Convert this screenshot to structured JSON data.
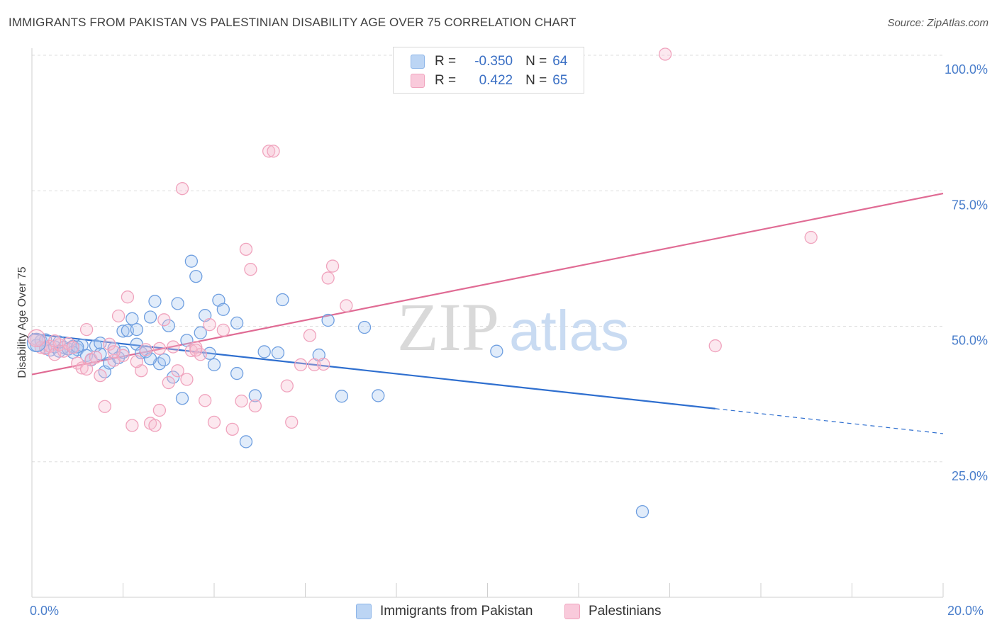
{
  "title": "IMMIGRANTS FROM PAKISTAN VS PALESTINIAN DISABILITY AGE OVER 75 CORRELATION CHART",
  "source": "Source: ZipAtlas.com",
  "watermark": {
    "zip": "ZIP",
    "atlas": "atlas"
  },
  "legend": {
    "r_label": "R =",
    "n_label": "N =",
    "series1": {
      "r": "-0.350",
      "n": "64",
      "color": "#a9c8f0"
    },
    "series2": {
      "r": "0.422",
      "n": "65",
      "color": "#f7bcd0"
    }
  },
  "bottom_legend": {
    "series1": "Immigrants from Pakistan",
    "series2": "Palestinians"
  },
  "chart_data": {
    "type": "scatter",
    "title": "IMMIGRANTS FROM PAKISTAN VS PALESTINIAN DISABILITY AGE OVER 75 CORRELATION CHART",
    "xlabel": "",
    "ylabel": "Disability Age Over 75",
    "xlim": [
      0.0,
      20.0
    ],
    "ylim": [
      0,
      103
    ],
    "x_tick_labels": [
      "0.0%",
      "20.0%"
    ],
    "y_ticks": [
      25,
      50,
      75,
      100
    ],
    "y_tick_labels": [
      "25.0%",
      "50.0%",
      "75.0%",
      "100.0%"
    ],
    "grid": true,
    "legend_position": "top-center",
    "series": [
      {
        "name": "Immigrants from Pakistan",
        "color": "#6f9fe0",
        "line_color": "#2f6fcf",
        "trend": {
          "x0": 0.0,
          "y0": 48.6,
          "x1": 15.0,
          "y1": 34.8,
          "x_dash_end": 20.0,
          "y_dash_end": 30.2
        },
        "points": [
          [
            0.1,
            46.5
          ],
          [
            0.2,
            47.3
          ],
          [
            0.3,
            46.0
          ],
          [
            0.4,
            45.6
          ],
          [
            0.5,
            46.2
          ],
          [
            0.6,
            45.4
          ],
          [
            0.7,
            46.1
          ],
          [
            0.8,
            45.8
          ],
          [
            0.9,
            46.3
          ],
          [
            1.0,
            45.7
          ],
          [
            1.1,
            46.5
          ],
          [
            1.2,
            44.6
          ],
          [
            1.3,
            43.8
          ],
          [
            1.4,
            46.4
          ],
          [
            1.5,
            44.9
          ],
          [
            1.6,
            41.6
          ],
          [
            1.7,
            43.2
          ],
          [
            1.8,
            45.9
          ],
          [
            1.9,
            44.2
          ],
          [
            2.0,
            49.1
          ],
          [
            2.1,
            49.2
          ],
          [
            2.2,
            51.4
          ],
          [
            2.3,
            46.7
          ],
          [
            2.4,
            45.1
          ],
          [
            2.5,
            45.3
          ],
          [
            2.6,
            51.7
          ],
          [
            2.7,
            54.6
          ],
          [
            2.8,
            43.1
          ],
          [
            2.9,
            43.8
          ],
          [
            3.0,
            50.1
          ],
          [
            3.1,
            40.6
          ],
          [
            3.2,
            54.2
          ],
          [
            3.3,
            36.7
          ],
          [
            3.4,
            47.4
          ],
          [
            3.5,
            62.0
          ],
          [
            3.6,
            59.2
          ],
          [
            3.7,
            48.8
          ],
          [
            3.8,
            52.0
          ],
          [
            3.9,
            45.0
          ],
          [
            4.0,
            42.9
          ],
          [
            4.1,
            54.8
          ],
          [
            4.2,
            53.1
          ],
          [
            4.5,
            50.6
          ],
          [
            4.5,
            41.3
          ],
          [
            4.7,
            28.7
          ],
          [
            4.9,
            37.2
          ],
          [
            5.1,
            45.3
          ],
          [
            5.4,
            45.1
          ],
          [
            5.5,
            54.9
          ],
          [
            6.3,
            44.7
          ],
          [
            6.5,
            51.1
          ],
          [
            6.8,
            37.1
          ],
          [
            7.3,
            49.8
          ],
          [
            7.6,
            37.2
          ],
          [
            10.2,
            45.4
          ],
          [
            13.4,
            15.8
          ],
          [
            2.3,
            49.4
          ],
          [
            0.3,
            47.5
          ],
          [
            0.6,
            47.1
          ],
          [
            0.9,
            45.2
          ],
          [
            1.0,
            46.2
          ],
          [
            1.5,
            46.9
          ],
          [
            2.0,
            45.2
          ],
          [
            2.6,
            44.0
          ]
        ]
      },
      {
        "name": "Palestinians",
        "color": "#f0a3bd",
        "line_color": "#e06b94",
        "trend": {
          "x0": 0.0,
          "y0": 41.1,
          "x1": 20.0,
          "y1": 74.5
        },
        "points": [
          [
            0.1,
            47.6
          ],
          [
            0.2,
            46.1
          ],
          [
            0.3,
            45.9
          ],
          [
            0.4,
            46.3
          ],
          [
            0.5,
            44.8
          ],
          [
            0.6,
            46.6
          ],
          [
            0.7,
            45.4
          ],
          [
            0.8,
            46.8
          ],
          [
            0.9,
            46.1
          ],
          [
            1.0,
            43.2
          ],
          [
            1.1,
            42.3
          ],
          [
            1.2,
            49.4
          ],
          [
            1.3,
            43.9
          ],
          [
            1.4,
            44.3
          ],
          [
            1.5,
            40.9
          ],
          [
            1.6,
            35.2
          ],
          [
            1.7,
            46.7
          ],
          [
            1.8,
            43.7
          ],
          [
            1.9,
            51.9
          ],
          [
            2.0,
            44.6
          ],
          [
            2.1,
            55.4
          ],
          [
            2.2,
            31.7
          ],
          [
            2.4,
            41.8
          ],
          [
            2.5,
            45.7
          ],
          [
            2.6,
            32.1
          ],
          [
            2.7,
            31.7
          ],
          [
            2.8,
            34.5
          ],
          [
            2.9,
            51.2
          ],
          [
            3.0,
            39.6
          ],
          [
            3.1,
            46.2
          ],
          [
            3.2,
            41.8
          ],
          [
            3.3,
            75.4
          ],
          [
            3.4,
            40.2
          ],
          [
            3.5,
            45.5
          ],
          [
            3.6,
            46.1
          ],
          [
            3.7,
            44.8
          ],
          [
            3.8,
            36.3
          ],
          [
            3.9,
            50.3
          ],
          [
            4.0,
            32.3
          ],
          [
            4.2,
            49.3
          ],
          [
            4.4,
            31.0
          ],
          [
            4.6,
            36.2
          ],
          [
            4.7,
            64.2
          ],
          [
            4.8,
            60.5
          ],
          [
            4.9,
            35.3
          ],
          [
            5.2,
            82.3
          ],
          [
            5.3,
            82.3
          ],
          [
            5.6,
            39.0
          ],
          [
            5.7,
            32.3
          ],
          [
            5.9,
            42.9
          ],
          [
            6.1,
            48.3
          ],
          [
            6.2,
            42.9
          ],
          [
            6.4,
            43.0
          ],
          [
            6.5,
            58.9
          ],
          [
            6.6,
            61.1
          ],
          [
            6.9,
            53.8
          ],
          [
            1.2,
            42.1
          ],
          [
            2.3,
            43.5
          ],
          [
            13.9,
            100.2
          ],
          [
            15.0,
            46.4
          ],
          [
            17.1,
            66.4
          ],
          [
            0.5,
            47.3
          ],
          [
            1.8,
            45.3
          ],
          [
            2.8,
            45.9
          ],
          [
            3.6,
            45.6
          ]
        ]
      }
    ]
  }
}
